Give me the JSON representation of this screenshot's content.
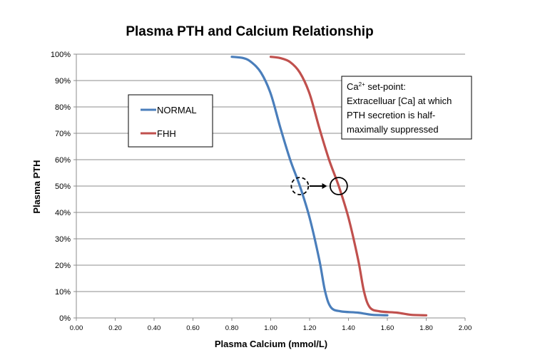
{
  "chart_data": {
    "type": "line",
    "title": "Plasma PTH and Calcium Relationship",
    "xlabel": "Plasma Calcium (mmol/L)",
    "ylabel": "Plasma PTH",
    "xlim": [
      0,
      2
    ],
    "ylim": [
      0,
      100
    ],
    "x_ticks": [
      "0.00",
      "0.20",
      "0.40",
      "0.60",
      "0.80",
      "1.00",
      "1.20",
      "1.40",
      "1.60",
      "1.80",
      "2.00"
    ],
    "y_ticks": [
      "0%",
      "10%",
      "20%",
      "30%",
      "40%",
      "50%",
      "60%",
      "70%",
      "80%",
      "90%",
      "100%"
    ],
    "grid": "horizontal",
    "legend_position": "upper-left",
    "series": [
      {
        "name": "NORMAL",
        "color": "#4a7ebb",
        "points": [
          [
            0.8,
            99
          ],
          [
            0.86,
            98.5
          ],
          [
            0.9,
            97
          ],
          [
            0.95,
            93
          ],
          [
            1.0,
            85
          ],
          [
            1.05,
            72
          ],
          [
            1.1,
            60
          ],
          [
            1.15,
            50
          ],
          [
            1.2,
            38
          ],
          [
            1.25,
            22
          ],
          [
            1.28,
            10
          ],
          [
            1.31,
            4
          ],
          [
            1.36,
            2.5
          ],
          [
            1.45,
            2
          ],
          [
            1.52,
            1.2
          ],
          [
            1.6,
            1
          ]
        ]
      },
      {
        "name": "FHH",
        "color": "#c0504d",
        "points": [
          [
            1.0,
            99
          ],
          [
            1.05,
            98.5
          ],
          [
            1.1,
            97
          ],
          [
            1.15,
            93
          ],
          [
            1.2,
            85
          ],
          [
            1.25,
            72
          ],
          [
            1.3,
            60
          ],
          [
            1.35,
            50
          ],
          [
            1.4,
            38
          ],
          [
            1.45,
            22
          ],
          [
            1.48,
            10
          ],
          [
            1.51,
            4
          ],
          [
            1.56,
            2.5
          ],
          [
            1.65,
            2
          ],
          [
            1.72,
            1.2
          ],
          [
            1.8,
            1
          ]
        ]
      }
    ],
    "annotations": {
      "setpoint_lines": [
        "Ca",
        "2+",
        " set-point:",
        "Extracelluar [Ca] at which",
        "PTH secretion is half-",
        "maximally suppressed"
      ],
      "normal_setpoint": [
        1.15,
        50
      ],
      "fhh_setpoint": [
        1.35,
        50
      ],
      "arrow_from": [
        1.2,
        50
      ],
      "arrow_to": [
        1.29,
        50
      ]
    }
  }
}
